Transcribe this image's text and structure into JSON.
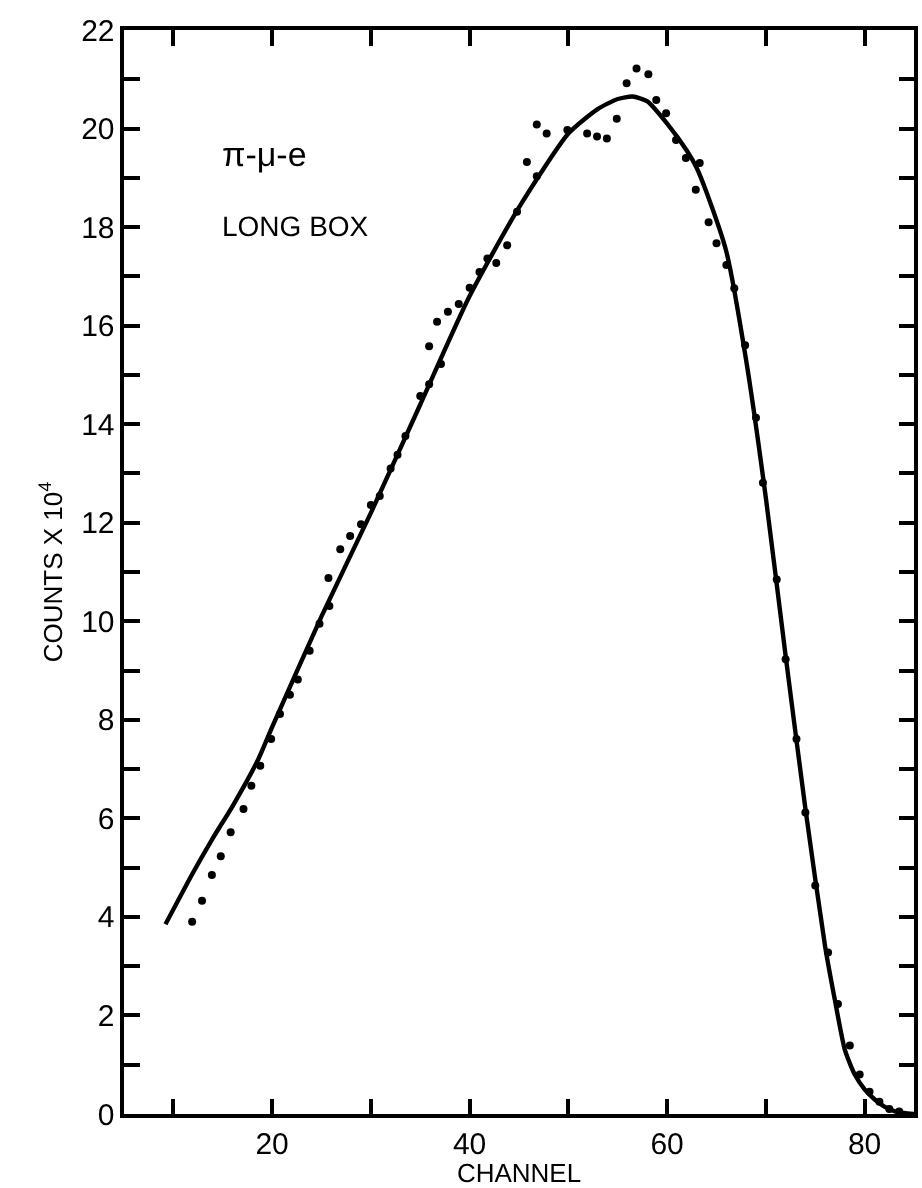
{
  "chart_data": {
    "type": "scatter",
    "xlabel": "CHANNEL",
    "ylabel": "COUNTS X 10$^{4}$",
    "xlim": [
      5,
      85
    ],
    "ylim": [
      0,
      22
    ],
    "xticks": [
      {
        "value": 10,
        "label": null
      },
      20,
      {
        "value": 30,
        "label": null
      },
      40,
      {
        "value": 50,
        "label": null
      },
      60,
      {
        "value": 70,
        "label": null
      },
      80
    ],
    "yticks": [
      0,
      {
        "value": 1,
        "label": null
      },
      2,
      {
        "value": 3,
        "label": null
      },
      4,
      {
        "value": 5,
        "label": null
      },
      6,
      {
        "value": 7,
        "label": null
      },
      8,
      {
        "value": 9,
        "label": null
      },
      10,
      {
        "value": 11,
        "label": null
      },
      12,
      {
        "value": 13,
        "label": null
      },
      14,
      {
        "value": 15,
        "label": null
      },
      16,
      {
        "value": 17,
        "label": null
      },
      18,
      {
        "value": 19,
        "label": null
      },
      20,
      {
        "value": 21,
        "label": null
      },
      22
    ],
    "grid": false,
    "annotations": [
      "π-μ-e",
      "LONG BOX"
    ],
    "series": [
      {
        "marker": "circle",
        "color": "#000000",
        "x": [
          11.9,
          12.9,
          13.9,
          14.8,
          15.8,
          17.1,
          17.9,
          18.8,
          19.9,
          20.8,
          21.8,
          22.6,
          23.8,
          24.8,
          25.7,
          25.8,
          26.9,
          27.9,
          29,
          30,
          30.9,
          32,
          32.7,
          33.5,
          35,
          35.9,
          35.9,
          36.7,
          37.1,
          37.8,
          38.9,
          40,
          41,
          41.8,
          42.7,
          43.8,
          44.8,
          45.8,
          46.8,
          46.8,
          47.8,
          49.9,
          51.9,
          52.9,
          53.9,
          54.9,
          55.9,
          56.9,
          58.1,
          58.9,
          59.9,
          60.9,
          61.9,
          62.9,
          63.3,
          64.2,
          65,
          66,
          66.8,
          67.9,
          69,
          69.7,
          71.1,
          72,
          73.1,
          74,
          75,
          76.3,
          77.3,
          78.5,
          79.5,
          80.5,
          81.5,
          82.5,
          83.5
        ],
        "values": [
          3.9,
          4.33,
          4.85,
          5.23,
          5.72,
          6.19,
          6.66,
          7.07,
          7.61,
          8.12,
          8.51,
          8.82,
          9.4,
          9.95,
          10.88,
          10.31,
          11.46,
          11.73,
          11.97,
          12.36,
          12.54,
          13.1,
          13.38,
          13.76,
          14.57,
          14.81,
          15.58,
          16.08,
          15.22,
          16.28,
          16.44,
          16.77,
          17.09,
          17.36,
          17.27,
          17.63,
          18.31,
          19.32,
          20.08,
          19.03,
          19.9,
          19.97,
          19.9,
          19.84,
          19.8,
          20.2,
          20.92,
          21.22,
          21.1,
          20.58,
          20.31,
          19.77,
          19.4,
          18.76,
          19.3,
          18.1,
          17.67,
          17.23,
          16.76,
          15.6,
          14.13,
          12.81,
          10.85,
          9.23,
          7.61,
          6.12,
          4.64,
          3.28,
          2.23,
          1.39,
          0.8,
          0.45,
          0.25,
          0.1,
          0.05
        ]
      },
      {
        "type": "line",
        "line_style": "solid",
        "marker": "none",
        "color": "#000000",
        "x": [
          9.2,
          12,
          14,
          16,
          18.6,
          20,
          25,
          30,
          35,
          40,
          45,
          50,
          53,
          55,
          56.5,
          58,
          60,
          62,
          63,
          64,
          66,
          68,
          70,
          72,
          74,
          76,
          77,
          78,
          79,
          80,
          81,
          82,
          83,
          84,
          85
        ],
        "values": [
          3.85,
          4.9,
          5.6,
          6.25,
          7.2,
          7.85,
          10.1,
          12.2,
          14.4,
          16.6,
          18.4,
          19.9,
          20.4,
          20.6,
          20.65,
          20.55,
          20.1,
          19.55,
          19.2,
          18.7,
          17.5,
          15.3,
          12.5,
          9.3,
          6.2,
          3.4,
          2.3,
          1.3,
          0.8,
          0.5,
          0.3,
          0.15,
          0.06,
          0.02,
          0
        ]
      }
    ]
  }
}
